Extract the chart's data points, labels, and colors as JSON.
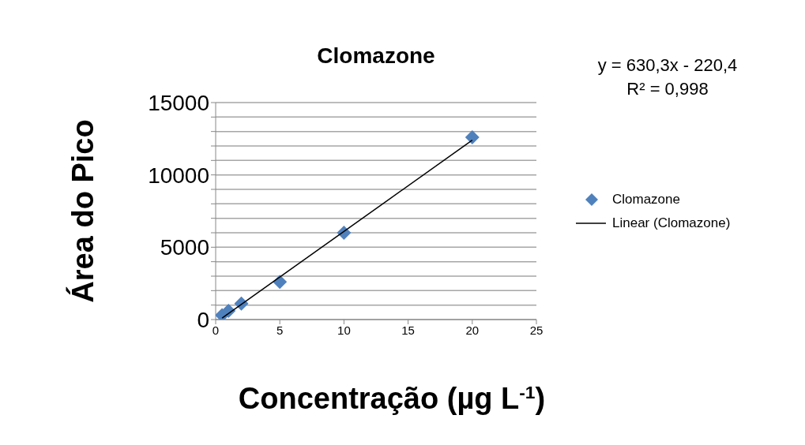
{
  "chart_data": {
    "type": "scatter",
    "title": "Clomazone",
    "xlabel": "Concentração (µg L$^{-1}$)",
    "ylabel": "Área do Pico",
    "annotations": [
      "y = 630,3x - 220,4",
      "R² = 0,998"
    ],
    "series": [
      {
        "name": "Clomazone",
        "type": "scatter",
        "color": "#4f81bd",
        "marker": "diamond",
        "x": [
          0.5,
          1,
          2,
          5,
          10,
          20
        ],
        "values": [
          300,
          600,
          1100,
          2600,
          6000,
          12600
        ]
      },
      {
        "name": "Linear (Clomazone)",
        "type": "line",
        "color": "#000000",
        "x": [
          0.5,
          20
        ],
        "values": [
          100,
          12400
        ]
      }
    ],
    "xlim": [
      0,
      25
    ],
    "xticks": [
      0,
      5,
      10,
      15,
      20,
      25
    ],
    "ylim": [
      0,
      15000
    ],
    "yticks": [
      0,
      {
        "value": 1000,
        "label": null
      },
      {
        "value": 2000,
        "label": null
      },
      {
        "value": 3000,
        "label": null
      },
      {
        "value": 4000,
        "label": null
      },
      5000,
      {
        "value": 6000,
        "label": null
      },
      {
        "value": 7000,
        "label": null
      },
      {
        "value": 8000,
        "label": null
      },
      {
        "value": 9000,
        "label": null
      },
      10000,
      {
        "value": 11000,
        "label": null
      },
      {
        "value": 12000,
        "label": null
      },
      {
        "value": 13000,
        "label": null
      },
      {
        "value": 14000,
        "label": null
      },
      15000
    ],
    "grid": "y",
    "legend": "right"
  }
}
